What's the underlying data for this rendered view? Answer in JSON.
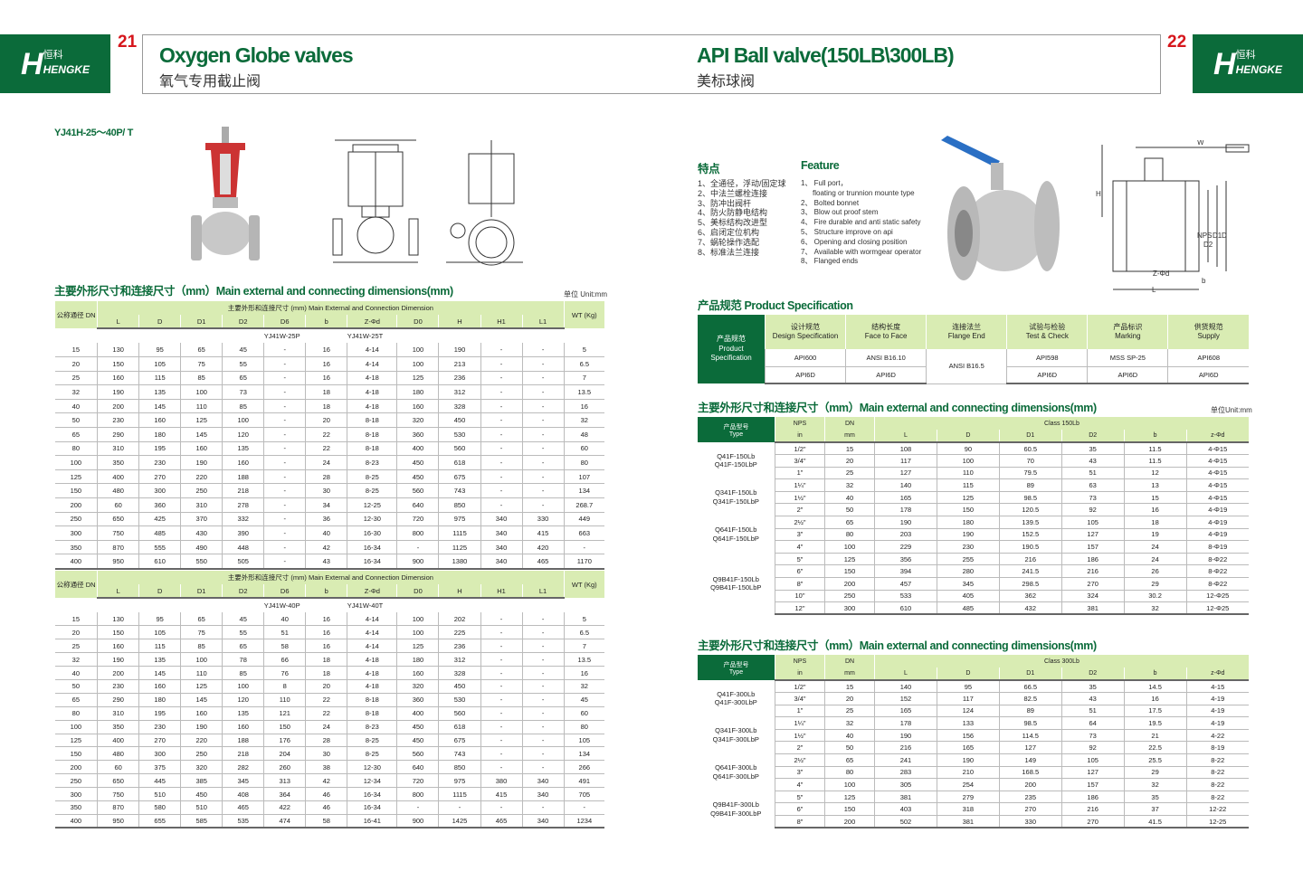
{
  "brand": {
    "logo_text": "HENGKE",
    "logo_cn": "恒科"
  },
  "left_page": {
    "page_number": "21",
    "title": "Oxygen Globe valves",
    "subtitle": "氧气专用截止阀",
    "model": "YJ41H-25～40P/ T",
    "section_title": "主要外形尺寸和连接尺寸（mm）Main external and connecting dimensions(mm)",
    "unit": "单位 Unit:mm",
    "tables": [
      {
        "dn_header": "公称通径 DN",
        "group_header": "主要外形和连接尺寸 (mm) Main External and Connection Dimension",
        "wt_header": "WT (Kg)",
        "columns": [
          "L",
          "D",
          "D1",
          "D2",
          "D6",
          "b",
          "Z-Φd",
          "D0",
          "H",
          "H1",
          "L1"
        ],
        "model_a": "YJ41W-25P",
        "model_b": "YJ41W-25T",
        "rows": [
          [
            "15",
            "130",
            "95",
            "65",
            "45",
            "-",
            "16",
            "4-14",
            "100",
            "190",
            "-",
            "-",
            "5"
          ],
          [
            "20",
            "150",
            "105",
            "75",
            "55",
            "-",
            "16",
            "4-14",
            "100",
            "213",
            "-",
            "-",
            "6.5"
          ],
          [
            "25",
            "160",
            "115",
            "85",
            "65",
            "-",
            "16",
            "4-18",
            "125",
            "236",
            "-",
            "-",
            "7"
          ],
          [
            "32",
            "190",
            "135",
            "100",
            "73",
            "-",
            "18",
            "4-18",
            "180",
            "312",
            "-",
            "-",
            "13.5"
          ],
          [
            "40",
            "200",
            "145",
            "110",
            "85",
            "-",
            "18",
            "4-18",
            "160",
            "328",
            "-",
            "-",
            "16"
          ],
          [
            "50",
            "230",
            "160",
            "125",
            "100",
            "-",
            "20",
            "8-18",
            "320",
            "450",
            "-",
            "-",
            "32"
          ],
          [
            "65",
            "290",
            "180",
            "145",
            "120",
            "-",
            "22",
            "8-18",
            "360",
            "530",
            "-",
            "-",
            "48"
          ],
          [
            "80",
            "310",
            "195",
            "160",
            "135",
            "-",
            "22",
            "8-18",
            "400",
            "560",
            "-",
            "-",
            "60"
          ],
          [
            "100",
            "350",
            "230",
            "190",
            "160",
            "-",
            "24",
            "8-23",
            "450",
            "618",
            "-",
            "-",
            "80"
          ],
          [
            "125",
            "400",
            "270",
            "220",
            "188",
            "-",
            "28",
            "8-25",
            "450",
            "675",
            "-",
            "-",
            "107"
          ],
          [
            "150",
            "480",
            "300",
            "250",
            "218",
            "-",
            "30",
            "8-25",
            "560",
            "743",
            "-",
            "-",
            "134"
          ],
          [
            "200",
            "60",
            "360",
            "310",
            "278",
            "-",
            "34",
            "12-25",
            "640",
            "850",
            "-",
            "-",
            "268.7"
          ],
          [
            "250",
            "650",
            "425",
            "370",
            "332",
            "-",
            "36",
            "12-30",
            "720",
            "975",
            "340",
            "330",
            "449"
          ],
          [
            "300",
            "750",
            "485",
            "430",
            "390",
            "-",
            "40",
            "16-30",
            "800",
            "1115",
            "340",
            "415",
            "663"
          ],
          [
            "350",
            "870",
            "555",
            "490",
            "448",
            "-",
            "42",
            "16-34",
            "-",
            "1125",
            "340",
            "420",
            "-"
          ],
          [
            "400",
            "950",
            "610",
            "550",
            "505",
            "-",
            "43",
            "16-34",
            "900",
            "1380",
            "340",
            "465",
            "1170"
          ]
        ]
      },
      {
        "dn_header": "公称通径 DN",
        "group_header": "主要外形和连接尺寸 (mm) Main External and Connection Dimension",
        "wt_header": "WT (Kg)",
        "columns": [
          "L",
          "D",
          "D1",
          "D2",
          "D6",
          "b",
          "Z-Φd",
          "D0",
          "H",
          "H1",
          "L1"
        ],
        "model_a": "YJ41W-40P",
        "model_b": "YJ41W-40T",
        "rows": [
          [
            "15",
            "130",
            "95",
            "65",
            "45",
            "40",
            "16",
            "4-14",
            "100",
            "202",
            "-",
            "-",
            "5"
          ],
          [
            "20",
            "150",
            "105",
            "75",
            "55",
            "51",
            "16",
            "4-14",
            "100",
            "225",
            "-",
            "-",
            "6.5"
          ],
          [
            "25",
            "160",
            "115",
            "85",
            "65",
            "58",
            "16",
            "4-14",
            "125",
            "236",
            "-",
            "-",
            "7"
          ],
          [
            "32",
            "190",
            "135",
            "100",
            "78",
            "66",
            "18",
            "4-18",
            "180",
            "312",
            "-",
            "-",
            "13.5"
          ],
          [
            "40",
            "200",
            "145",
            "110",
            "85",
            "76",
            "18",
            "4-18",
            "160",
            "328",
            "-",
            "-",
            "16"
          ],
          [
            "50",
            "230",
            "160",
            "125",
            "100",
            "8",
            "20",
            "4-18",
            "320",
            "450",
            "-",
            "-",
            "32"
          ],
          [
            "65",
            "290",
            "180",
            "145",
            "120",
            "110",
            "22",
            "8-18",
            "360",
            "530",
            "-",
            "-",
            "45"
          ],
          [
            "80",
            "310",
            "195",
            "160",
            "135",
            "121",
            "22",
            "8-18",
            "400",
            "560",
            "-",
            "-",
            "60"
          ],
          [
            "100",
            "350",
            "230",
            "190",
            "160",
            "150",
            "24",
            "8-23",
            "450",
            "618",
            "-",
            "-",
            "80"
          ],
          [
            "125",
            "400",
            "270",
            "220",
            "188",
            "176",
            "28",
            "8-25",
            "450",
            "675",
            "-",
            "-",
            "105"
          ],
          [
            "150",
            "480",
            "300",
            "250",
            "218",
            "204",
            "30",
            "8-25",
            "560",
            "743",
            "-",
            "-",
            "134"
          ],
          [
            "200",
            "60",
            "375",
            "320",
            "282",
            "260",
            "38",
            "12-30",
            "640",
            "850",
            "-",
            "-",
            "266"
          ],
          [
            "250",
            "650",
            "445",
            "385",
            "345",
            "313",
            "42",
            "12-34",
            "720",
            "975",
            "380",
            "340",
            "491"
          ],
          [
            "300",
            "750",
            "510",
            "450",
            "408",
            "364",
            "46",
            "16-34",
            "800",
            "1115",
            "415",
            "340",
            "705"
          ],
          [
            "350",
            "870",
            "580",
            "510",
            "465",
            "422",
            "46",
            "16-34",
            "-",
            "-",
            "-",
            "-",
            "-"
          ],
          [
            "400",
            "950",
            "655",
            "585",
            "535",
            "474",
            "58",
            "16-41",
            "900",
            "1425",
            "465",
            "340",
            "1234"
          ]
        ]
      }
    ]
  },
  "right_page": {
    "page_number": "22",
    "title": "API Ball valve(150LB\\300LB)",
    "subtitle": "美标球阀",
    "features_cn_title": "特点",
    "features_en_title": "Feature",
    "features_cn": [
      "1、全通径，浮动/固定球",
      "2、中法兰螺栓连接",
      "3、防冲出阀杆",
      "4、防火防静电结构",
      "5、美标结构改进型",
      "6、启闭定位机构",
      "7、蜗轮操作选配",
      "8、标准法兰连接"
    ],
    "features_en": [
      "1、 Full port，",
      "floating or trunnion mounte type",
      "2、 Bolted bonnet",
      "3、 Blow out proof stem",
      "4、 Fire durable and anti static safety",
      "5、 Structure improve on api",
      "6、 Opening and closing position",
      "7、 Available with wormgear operator",
      "8、 Flanged ends"
    ],
    "drawing_labels": [
      "W",
      "H",
      "NPS",
      "D2",
      "D1",
      "D",
      "Z-Φd",
      "b",
      "L"
    ],
    "spec_title": "产品规范  Product Specification",
    "spec": {
      "row_header": [
        "产品规范",
        "Product",
        "Specification"
      ],
      "columns": [
        [
          "设计规范",
          "Design Specification"
        ],
        [
          "结构长度",
          "Face to Face"
        ],
        [
          "连接法兰",
          "Flange End"
        ],
        [
          "试验与检验",
          "Test & Check"
        ],
        [
          "产品标识",
          "Marking"
        ],
        [
          "供货规范",
          "Supply"
        ]
      ],
      "row1": [
        "API600",
        "ANSI B16.10",
        "ANSI B16.5",
        "API598",
        "MSS SP-25",
        "API608"
      ],
      "row2": [
        "API6D",
        "API6D",
        "API6D",
        "API6D",
        "API6D"
      ]
    },
    "dims_title": "主要外形尺寸和连接尺寸（mm）Main external and connecting dimensions(mm)",
    "unit": "单位Unit:mm",
    "tables": [
      {
        "type_header": [
          "产品型号",
          "Type"
        ],
        "nps_header": "NPS",
        "nps_unit": "in",
        "dn_header": "DN",
        "dn_unit": "mm",
        "class": "Class 150Lb",
        "columns": [
          "L",
          "D",
          "D1",
          "D2",
          "b",
          "z-Φd"
        ],
        "groups": [
          {
            "names": [
              "Q41F-150Lb",
              "Q41F-150LbP"
            ],
            "span": 3
          },
          {
            "names": [
              "Q341F-150Lb",
              "Q341F-150LbP"
            ],
            "span": 3
          },
          {
            "names": [
              "Q641F-150Lb",
              "Q641F-150LbP"
            ],
            "span": 3
          },
          {
            "names": [
              "Q9B41F-150Lb",
              "Q9B41F-150LbP"
            ],
            "span": 5
          }
        ],
        "rows": [
          [
            "1/2\"",
            "15",
            "108",
            "90",
            "60.5",
            "35",
            "11.5",
            "4-Φ15"
          ],
          [
            "3/4\"",
            "20",
            "117",
            "100",
            "70",
            "43",
            "11.5",
            "4-Φ15"
          ],
          [
            "1\"",
            "25",
            "127",
            "110",
            "79.5",
            "51",
            "12",
            "4-Φ15"
          ],
          [
            "1¼\"",
            "32",
            "140",
            "115",
            "89",
            "63",
            "13",
            "4-Φ15"
          ],
          [
            "1½\"",
            "40",
            "165",
            "125",
            "98.5",
            "73",
            "15",
            "4-Φ15"
          ],
          [
            "2\"",
            "50",
            "178",
            "150",
            "120.5",
            "92",
            "16",
            "4-Φ19"
          ],
          [
            "2½\"",
            "65",
            "190",
            "180",
            "139.5",
            "105",
            "18",
            "4-Φ19"
          ],
          [
            "3\"",
            "80",
            "203",
            "190",
            "152.5",
            "127",
            "19",
            "4-Φ19"
          ],
          [
            "4\"",
            "100",
            "229",
            "230",
            "190.5",
            "157",
            "24",
            "8-Φ19"
          ],
          [
            "5\"",
            "125",
            "356",
            "255",
            "216",
            "186",
            "24",
            "8-Φ22"
          ],
          [
            "6\"",
            "150",
            "394",
            "280",
            "241.5",
            "216",
            "26",
            "8-Φ22"
          ],
          [
            "8\"",
            "200",
            "457",
            "345",
            "298.5",
            "270",
            "29",
            "8-Φ22"
          ],
          [
            "10\"",
            "250",
            "533",
            "405",
            "362",
            "324",
            "30.2",
            "12-Φ25"
          ],
          [
            "12\"",
            "300",
            "610",
            "485",
            "432",
            "381",
            "32",
            "12-Φ25"
          ]
        ]
      },
      {
        "type_header": [
          "产品型号",
          "Type"
        ],
        "nps_header": "NPS",
        "nps_unit": "in",
        "dn_header": "DN",
        "dn_unit": "mm",
        "class": "Class 300Lb",
        "columns": [
          "L",
          "D",
          "D1",
          "D2",
          "b",
          "z-Φd"
        ],
        "groups": [
          {
            "names": [
              "Q41F-300Lb",
              "Q41F-300LbP"
            ],
            "span": 3
          },
          {
            "names": [
              "Q341F-300Lb",
              "Q341F-300LbP"
            ],
            "span": 3
          },
          {
            "names": [
              "Q641F-300Lb",
              "Q641F-300LbP"
            ],
            "span": 3
          },
          {
            "names": [
              "Q9B41F-300Lb",
              "Q9B41F-300LbP"
            ],
            "span": 3
          }
        ],
        "rows": [
          [
            "1/2\"",
            "15",
            "140",
            "95",
            "66.5",
            "35",
            "14.5",
            "4-15"
          ],
          [
            "3/4\"",
            "20",
            "152",
            "117",
            "82.5",
            "43",
            "16",
            "4-19"
          ],
          [
            "1\"",
            "25",
            "165",
            "124",
            "89",
            "51",
            "17.5",
            "4-19"
          ],
          [
            "1¼\"",
            "32",
            "178",
            "133",
            "98.5",
            "64",
            "19.5",
            "4-19"
          ],
          [
            "1½\"",
            "40",
            "190",
            "156",
            "114.5",
            "73",
            "21",
            "4-22"
          ],
          [
            "2\"",
            "50",
            "216",
            "165",
            "127",
            "92",
            "22.5",
            "8-19"
          ],
          [
            "2½\"",
            "65",
            "241",
            "190",
            "149",
            "105",
            "25.5",
            "8-22"
          ],
          [
            "3\"",
            "80",
            "283",
            "210",
            "168.5",
            "127",
            "29",
            "8-22"
          ],
          [
            "4\"",
            "100",
            "305",
            "254",
            "200",
            "157",
            "32",
            "8-22"
          ],
          [
            "5\"",
            "125",
            "381",
            "279",
            "235",
            "186",
            "35",
            "8-22"
          ],
          [
            "6\"",
            "150",
            "403",
            "318",
            "270",
            "216",
            "37",
            "12-22"
          ],
          [
            "8\"",
            "200",
            "502",
            "381",
            "330",
            "270",
            "41.5",
            "12-25"
          ]
        ]
      }
    ]
  },
  "colors": {
    "brand_green": "#0b6b3a",
    "header_light_green": "#d9ecb3",
    "page_number_red": "#d6161c"
  }
}
